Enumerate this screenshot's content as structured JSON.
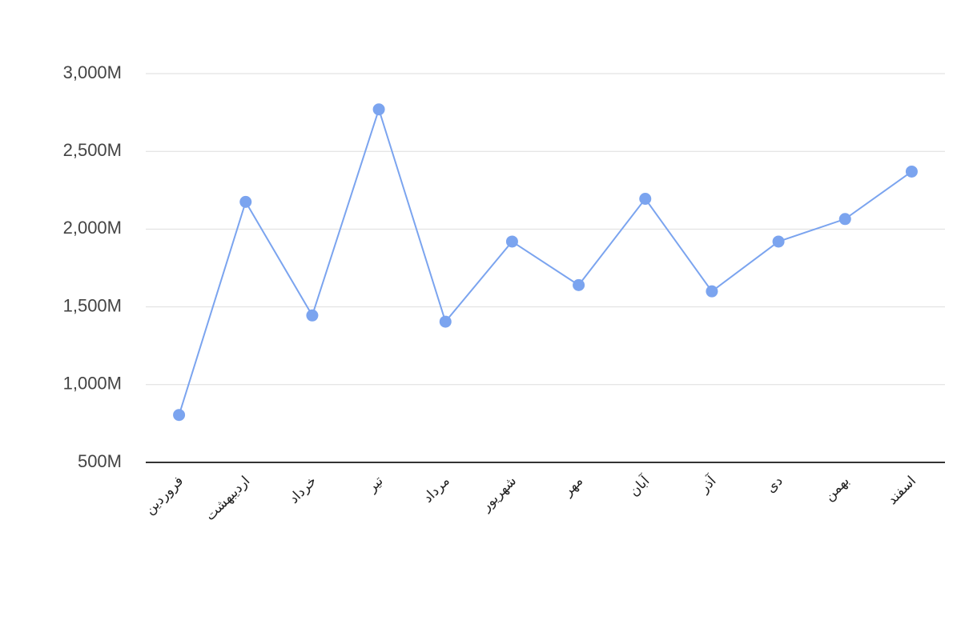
{
  "chart_data": {
    "type": "line",
    "categories": [
      "فروردین",
      "اردیبهشت",
      "خرداد",
      "تیر",
      "مرداد",
      "شهریور",
      "مهر",
      "آبان",
      "آذر",
      "دی",
      "بهمن",
      "اسفند"
    ],
    "values": [
      805000000,
      2175000000,
      1445000000,
      2770000000,
      1405000000,
      1920000000,
      1640000000,
      2195000000,
      1600000000,
      1920000000,
      2065000000,
      2370000000
    ],
    "color": "#7ba4ef",
    "ylim": [
      500000000,
      3000000000
    ],
    "yticks": [
      {
        "value": 500000000,
        "label": "500M"
      },
      {
        "value": 1000000000,
        "label": "1,000M"
      },
      {
        "value": 1500000000,
        "label": "1,500M"
      },
      {
        "value": 2000000000,
        "label": "2,000M"
      },
      {
        "value": 2500000000,
        "label": "2,500M"
      },
      {
        "value": 3000000000,
        "label": "3,000M"
      }
    ],
    "grid": true
  }
}
